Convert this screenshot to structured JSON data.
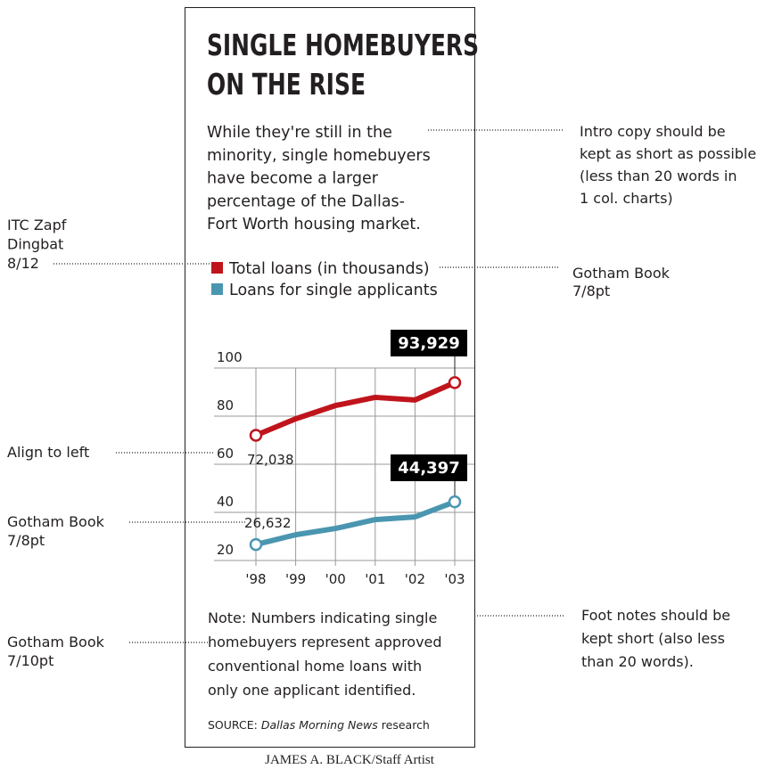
{
  "chart_data": {
    "type": "line",
    "title": [
      "SINGLE HOMEBUYERS",
      "ON THE RISE"
    ],
    "subtitle": [
      "While they're still in the",
      "minority, single homebuyers",
      "have become a larger",
      "percentage of the Dallas-",
      "Fort Worth housing market."
    ],
    "categories": [
      "'98",
      "'99",
      "'00",
      "'01",
      "'02",
      "'03"
    ],
    "series": [
      {
        "name": "Total loans (in thousands)",
        "color": "#c0141c",
        "values": [
          72.038,
          78.9,
          84.4,
          87.8,
          86.7,
          93.929
        ],
        "value_labels": [
          "72,038",
          null,
          null,
          null,
          null,
          "93,929"
        ]
      },
      {
        "name": "Loans for single applicants",
        "color": "#4a96b0",
        "values": [
          26.632,
          30.7,
          33.3,
          37.0,
          38.1,
          44.397
        ],
        "value_labels": [
          "26,632",
          null,
          null,
          null,
          null,
          "44,397"
        ]
      }
    ],
    "ylim": [
      20,
      100
    ],
    "yticks": [
      20,
      40,
      60,
      80,
      100
    ],
    "grid": true,
    "note": [
      "Note: Numbers indicating single",
      "homebuyers represent approved",
      "conventional home loans with",
      "only one applicant identified."
    ],
    "source": {
      "label": "SOURCE:",
      "publication": "Dallas Morning News",
      "suffix": "research"
    }
  },
  "annotations": [
    [
      "Intro copy should be",
      "kept as short as possible",
      "(less than 20 words in",
      "1 col. charts)"
    ],
    [
      "ITC Zapf",
      "Dingbat",
      "8/12"
    ],
    [
      "Gotham Book",
      "7/8pt"
    ],
    [
      "Align to left"
    ],
    [
      "Gotham Book",
      "7/8pt"
    ],
    [
      "Foot notes should be",
      "kept short (also less",
      "than 20 words)."
    ],
    [
      "Gotham Book",
      "7/10pt"
    ]
  ],
  "credit": "JAMES A. BLACK/Staff Artist"
}
